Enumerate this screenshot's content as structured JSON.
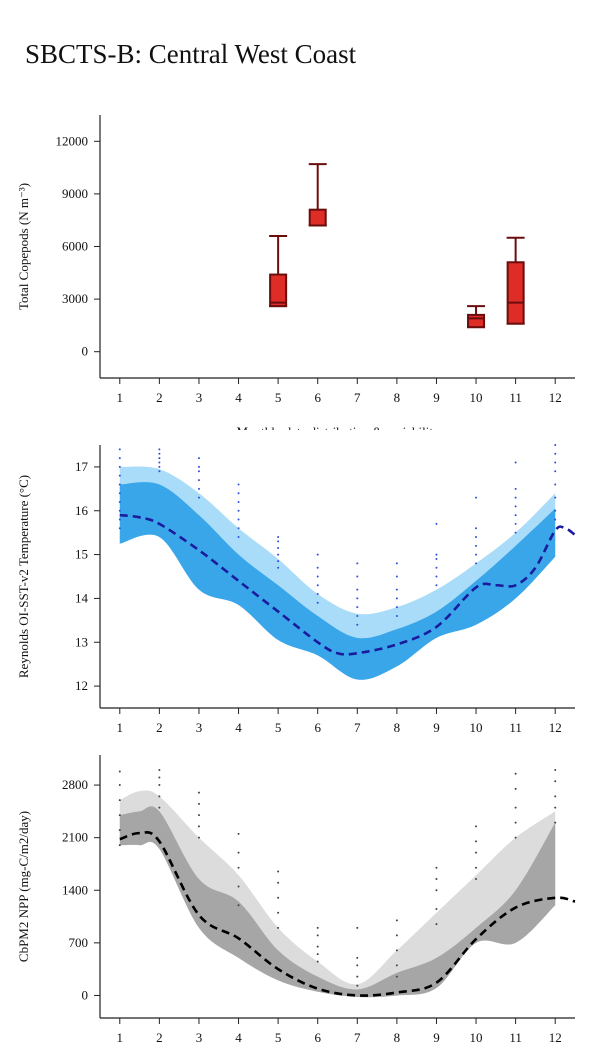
{
  "title": "SBCTS-B: Central West Coast",
  "chart_data": [
    {
      "type": "box",
      "ylabel": "Total Copepods (N m⁻³)",
      "xlabel": "Monthly data distribution & variability",
      "xlim": [
        0.5,
        12.5
      ],
      "xticks": [
        1,
        2,
        3,
        4,
        5,
        6,
        7,
        8,
        9,
        10,
        11,
        12
      ],
      "ylim": [
        -1500,
        13500
      ],
      "yticks": [
        0,
        3000,
        6000,
        9000,
        12000
      ],
      "color": "#de2d26",
      "edge_color": "#6b0d0d",
      "boxes": [
        {
          "x": 5,
          "whisker_high": 6600,
          "q3": 4400,
          "median": 2800,
          "q1": 2600,
          "whisker_low": 2600
        },
        {
          "x": 6,
          "whisker_high": 10700,
          "q3": 8100,
          "median": 7200,
          "q1": 7200,
          "whisker_low": 7200
        },
        {
          "x": 10,
          "whisker_high": 2600,
          "q3": 2100,
          "median": 1900,
          "q1": 1400,
          "whisker_low": 1400
        },
        {
          "x": 11,
          "whisker_high": 6500,
          "q3": 5100,
          "median": 2800,
          "q1": 1600,
          "whisker_low": 1600
        }
      ]
    },
    {
      "type": "line",
      "ylabel": "Reynolds OI-SST-v2 Temperature (°C)",
      "xlim": [
        0.5,
        12.5
      ],
      "xticks": [
        1,
        2,
        3,
        4,
        5,
        6,
        7,
        8,
        9,
        10,
        11,
        12
      ],
      "ylim": [
        11.5,
        17.5
      ],
      "yticks": [
        12,
        13,
        14,
        15,
        16,
        17
      ],
      "bands": [
        {
          "color": "#a9dcf8",
          "x": [
            1,
            2,
            3,
            4,
            5,
            6,
            7,
            8,
            9,
            10,
            11,
            12
          ],
          "upper": [
            17.0,
            16.95,
            16.4,
            15.6,
            14.9,
            14.1,
            13.65,
            13.8,
            14.2,
            14.8,
            15.5,
            16.4
          ],
          "lower": [
            15.25,
            15.4,
            14.2,
            13.85,
            13.05,
            12.7,
            12.15,
            12.45,
            13.1,
            13.4,
            14.0,
            14.95
          ]
        },
        {
          "color": "#39a6ea",
          "x": [
            1,
            2,
            3,
            4,
            5,
            6,
            7,
            8,
            9,
            10,
            11,
            12
          ],
          "upper": [
            16.6,
            16.6,
            15.9,
            15.0,
            14.3,
            13.6,
            13.1,
            13.3,
            13.7,
            14.4,
            15.2,
            16.05
          ],
          "lower": [
            15.25,
            15.4,
            14.2,
            13.85,
            13.05,
            12.7,
            12.15,
            12.45,
            13.1,
            13.4,
            14.0,
            14.95
          ]
        }
      ],
      "line": {
        "color": "#1b1b9e",
        "x": [
          1,
          1.5,
          2,
          3,
          4,
          5,
          6,
          6.5,
          7,
          8,
          9,
          10,
          10.5,
          11,
          11.5,
          12,
          12.25,
          12.5
        ],
        "values": [
          15.9,
          15.85,
          15.7,
          15.1,
          14.4,
          13.7,
          13.0,
          12.75,
          12.75,
          12.95,
          13.35,
          14.25,
          14.3,
          14.3,
          14.7,
          15.55,
          15.6,
          15.45
        ]
      },
      "points_color": "#2e4fe0",
      "points": [
        {
          "x": 1,
          "values": [
            15.6,
            15.8,
            16.0,
            16.2,
            16.4,
            16.6,
            16.8,
            17.0,
            17.2,
            17.4
          ]
        },
        {
          "x": 2,
          "values": [
            16.9,
            17.0,
            17.1,
            17.2,
            17.3,
            17.4
          ]
        },
        {
          "x": 3,
          "values": [
            16.3,
            16.5,
            16.7,
            16.9,
            17.0,
            17.2
          ]
        },
        {
          "x": 4,
          "values": [
            15.4,
            15.6,
            15.8,
            16.0,
            16.2,
            16.4,
            16.6
          ]
        },
        {
          "x": 5,
          "values": [
            14.7,
            14.85,
            15.0,
            15.15,
            15.3,
            15.4
          ]
        },
        {
          "x": 6,
          "values": [
            13.9,
            14.1,
            14.3,
            14.5,
            14.7,
            15.0
          ]
        },
        {
          "x": 7,
          "values": [
            13.4,
            13.6,
            13.8,
            14.0,
            14.2,
            14.5,
            14.8
          ]
        },
        {
          "x": 8,
          "values": [
            13.6,
            13.8,
            14.0,
            14.2,
            14.5,
            14.8
          ]
        },
        {
          "x": 9,
          "values": [
            14.3,
            14.5,
            14.7,
            14.9,
            15.0,
            15.7
          ]
        },
        {
          "x": 10,
          "values": [
            14.8,
            15.0,
            15.2,
            15.4,
            15.6,
            16.3
          ]
        },
        {
          "x": 11,
          "values": [
            15.5,
            15.7,
            15.9,
            16.1,
            16.3,
            16.5,
            17.1
          ]
        },
        {
          "x": 12,
          "values": [
            15.8,
            16.0,
            16.3,
            16.6,
            16.9,
            17.1,
            17.3,
            17.5
          ]
        }
      ]
    },
    {
      "type": "line",
      "ylabel": "CbPM2 NPP (mg-C/m2/day)",
      "xlim": [
        0.5,
        12.5
      ],
      "xticks": [
        1,
        2,
        3,
        4,
        5,
        6,
        7,
        8,
        9,
        10,
        11,
        12
      ],
      "ylim": [
        -300,
        3200
      ],
      "yticks": [
        0,
        700,
        1400,
        2100,
        2800
      ],
      "bands": [
        {
          "color": "#dcdcdc",
          "x": [
            1,
            1.5,
            2,
            3,
            4,
            5,
            6,
            7,
            8,
            9,
            10,
            11,
            12
          ],
          "upper": [
            2600,
            2720,
            2650,
            2100,
            1600,
            900,
            450,
            150,
            600,
            1100,
            1600,
            2100,
            2450
          ],
          "lower": [
            2000,
            2000,
            1950,
            900,
            500,
            200,
            50,
            -20,
            0,
            100,
            700,
            700,
            1200
          ]
        },
        {
          "color": "#a6a6a6",
          "x": [
            1,
            1.5,
            2,
            3,
            4,
            5,
            6,
            7,
            8,
            9,
            10,
            11,
            12
          ],
          "upper": [
            2400,
            2450,
            2450,
            1550,
            1250,
            600,
            250,
            80,
            300,
            500,
            900,
            1400,
            2300
          ],
          "lower": [
            2000,
            2000,
            1950,
            900,
            500,
            200,
            50,
            -20,
            0,
            100,
            700,
            700,
            1200
          ]
        }
      ],
      "line": {
        "color": "#000000",
        "x": [
          1,
          1.5,
          2,
          3,
          4,
          5,
          6,
          7,
          8,
          9,
          10,
          11,
          12,
          12.5
        ],
        "values": [
          2080,
          2160,
          2050,
          1070,
          760,
          350,
          90,
          0,
          40,
          170,
          750,
          1170,
          1300,
          1250
        ]
      },
      "points_color": "#444444",
      "points": [
        {
          "x": 1,
          "values": [
            2000,
            2200,
            2400,
            2600,
            2800,
            2980
          ]
        },
        {
          "x": 2,
          "values": [
            2500,
            2650,
            2800,
            2900,
            3000
          ]
        },
        {
          "x": 3,
          "values": [
            2100,
            2250,
            2400,
            2550,
            2700
          ]
        },
        {
          "x": 4,
          "values": [
            1200,
            1450,
            1700,
            1900,
            2150
          ]
        },
        {
          "x": 5,
          "values": [
            900,
            1100,
            1300,
            1500,
            1650
          ]
        },
        {
          "x": 6,
          "values": [
            450,
            550,
            650,
            800,
            900
          ]
        },
        {
          "x": 7,
          "values": [
            130,
            250,
            400,
            500,
            900
          ]
        },
        {
          "x": 8,
          "values": [
            250,
            400,
            600,
            800,
            1000
          ]
        },
        {
          "x": 9,
          "values": [
            950,
            1150,
            1400,
            1550,
            1700
          ]
        },
        {
          "x": 10,
          "values": [
            1550,
            1700,
            1900,
            2050,
            2250
          ]
        },
        {
          "x": 11,
          "values": [
            2100,
            2300,
            2500,
            2750,
            2950
          ]
        },
        {
          "x": 12,
          "values": [
            2300,
            2500,
            2650,
            2850,
            3000
          ]
        }
      ]
    }
  ]
}
